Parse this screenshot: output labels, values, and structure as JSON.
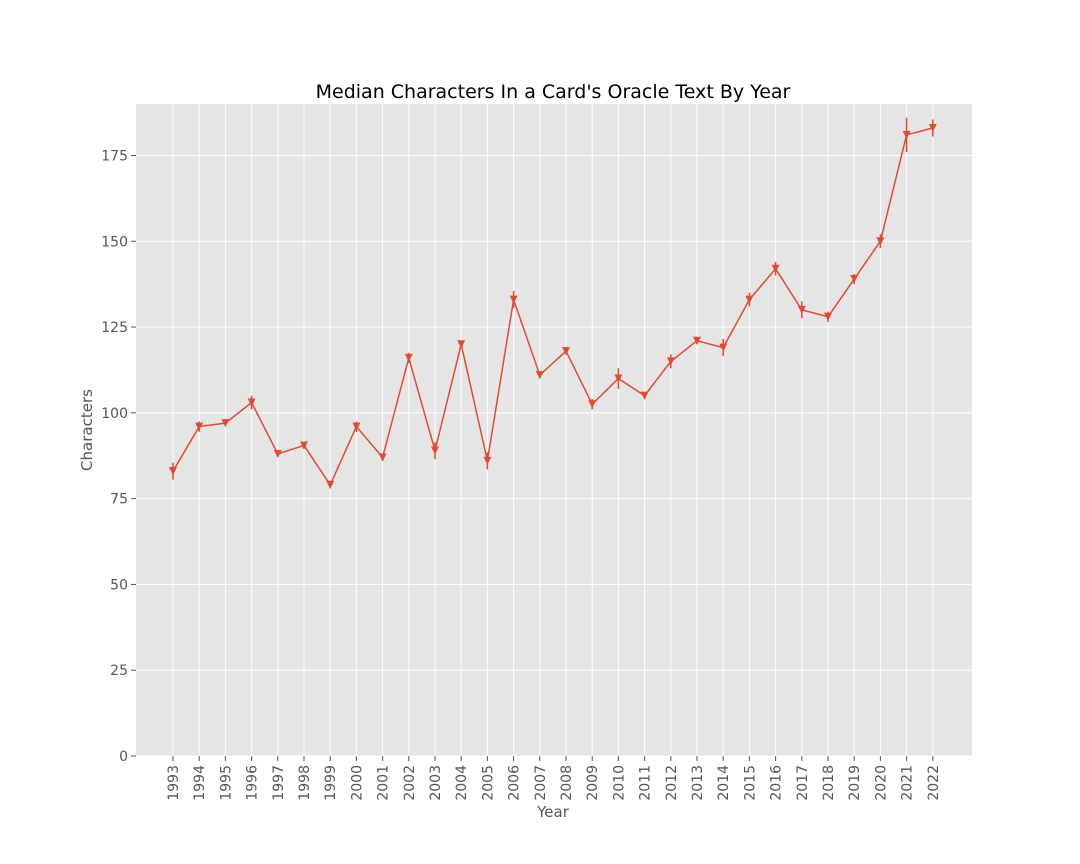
{
  "chart_data": {
    "type": "line",
    "title": "Median Characters In a Card's Oracle Text By Year",
    "xlabel": "Year",
    "ylabel": "Characters",
    "ylim": [
      0,
      190
    ],
    "y_ticks": [
      0,
      25,
      50,
      75,
      100,
      125,
      150,
      175
    ],
    "grid": true,
    "marker": "triangle-down",
    "error_bars": true,
    "colors": {
      "line": "#E24A33",
      "plot_background": "#E5E5E5",
      "grid": "#FFFFFF"
    },
    "series": [
      {
        "x": [
          "1993",
          "1994",
          "1995",
          "1996",
          "1997",
          "1998",
          "1999",
          "2000",
          "2001",
          "2002",
          "2003",
          "2004",
          "2005",
          "2006",
          "2007",
          "2008",
          "2009",
          "2010",
          "2011",
          "2012",
          "2013",
          "2014",
          "2015",
          "2016",
          "2017",
          "2018",
          "2019",
          "2020",
          "2021",
          "2022"
        ],
        "y": [
          83,
          96,
          97,
          103,
          88,
          90.5,
          79,
          96,
          87,
          116,
          89,
          120,
          86,
          133,
          111,
          118,
          102.5,
          110,
          105,
          115,
          121,
          119,
          133,
          142,
          130,
          128,
          139,
          150,
          181,
          183
        ],
        "error": [
          2.5,
          1.5,
          1,
          2,
          0.5,
          1,
          1,
          1.5,
          1,
          1.5,
          2.5,
          1,
          2.5,
          2.5,
          1,
          1,
          1.5,
          3,
          1,
          2,
          1,
          2.5,
          2,
          2,
          2.5,
          1.5,
          1.5,
          2,
          5,
          2.5
        ]
      }
    ]
  }
}
